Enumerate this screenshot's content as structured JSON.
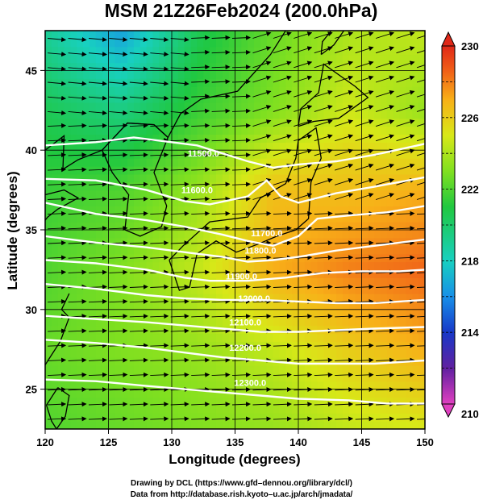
{
  "title": "MSM 21Z26Feb2024 (200.0hPa)",
  "xlabel": "Longitude (degrees)",
  "ylabel": "Latitude  (degrees)",
  "xticks": [
    {
      "value": 120,
      "label": "120"
    },
    {
      "value": 125,
      "label": "125"
    },
    {
      "value": 130,
      "label": "130"
    },
    {
      "value": 135,
      "label": "135"
    },
    {
      "value": 140,
      "label": "140"
    },
    {
      "value": 145,
      "label": "145"
    },
    {
      "value": 150,
      "label": "150"
    }
  ],
  "yticks": [
    {
      "value": 25,
      "label": "25"
    },
    {
      "value": 30,
      "label": "30"
    },
    {
      "value": 35,
      "label": "35"
    },
    {
      "value": 40,
      "label": "40"
    },
    {
      "value": 45,
      "label": "45"
    }
  ],
  "colorbar": {
    "min": 210,
    "max": 230,
    "labels": [
      {
        "value": 230,
        "label": "230"
      },
      {
        "value": 226,
        "label": "226"
      },
      {
        "value": 222,
        "label": "222"
      },
      {
        "value": 218,
        "label": "218"
      },
      {
        "value": 214,
        "label": "214"
      },
      {
        "value": 210,
        "label": "210"
      }
    ],
    "colors": [
      "#e040c0",
      "#6020a0",
      "#1838c8",
      "#1890e8",
      "#18d0c0",
      "#20c840",
      "#80e020",
      "#d8e818",
      "#f8b018",
      "#f06018",
      "#e02818"
    ]
  },
  "map_data": {
    "lon_range": [
      120,
      150
    ],
    "lat_range": [
      22.5,
      47.5
    ],
    "height_contours": [
      {
        "label": "11500.0",
        "points": [
          [
            120,
            40.3
          ],
          [
            124,
            40.5
          ],
          [
            127,
            40.8
          ],
          [
            132,
            40.3
          ],
          [
            134,
            39.8
          ],
          [
            136,
            39.3
          ],
          [
            138,
            38.9
          ],
          [
            140,
            39.1
          ],
          [
            143,
            39.3
          ],
          [
            146,
            39.7
          ],
          [
            150,
            40.4
          ]
        ]
      },
      {
        "label": "11600.0",
        "points": [
          [
            120,
            38.2
          ],
          [
            124,
            38.1
          ],
          [
            128,
            37.5
          ],
          [
            131,
            36.8
          ],
          [
            133,
            36.6
          ],
          [
            136,
            37.1
          ],
          [
            137.5,
            38.1
          ],
          [
            138.6,
            37.1
          ],
          [
            140,
            36.7
          ],
          [
            143,
            37.3
          ],
          [
            146,
            37.7
          ],
          [
            150,
            38.3
          ]
        ]
      },
      {
        "label": "11700.0",
        "points": [
          [
            120,
            36.7
          ],
          [
            124,
            36.0
          ],
          [
            128,
            35.6
          ],
          [
            131,
            35.2
          ],
          [
            134,
            34.7
          ],
          [
            136,
            34.3
          ],
          [
            138,
            34.0
          ],
          [
            140,
            34.6
          ],
          [
            141.5,
            35.7
          ],
          [
            144,
            35.9
          ],
          [
            147,
            36.1
          ],
          [
            150,
            36.5
          ]
        ]
      },
      {
        "label": "11800.0",
        "points": [
          [
            120,
            34.6
          ],
          [
            124,
            34.2
          ],
          [
            128,
            33.9
          ],
          [
            131,
            33.6
          ],
          [
            134,
            33.3
          ],
          [
            136,
            33.0
          ],
          [
            138,
            33.1
          ],
          [
            140,
            33.3
          ],
          [
            143,
            33.7
          ],
          [
            146,
            34.0
          ],
          [
            150,
            34.4
          ]
        ]
      },
      {
        "label": "11900.0",
        "points": [
          [
            120,
            33.1
          ],
          [
            124,
            32.9
          ],
          [
            128,
            32.5
          ],
          [
            131,
            32.0
          ],
          [
            133,
            31.8
          ],
          [
            136,
            31.8
          ],
          [
            139,
            32.0
          ],
          [
            142,
            32.3
          ],
          [
            145,
            32.4
          ],
          [
            148,
            32.4
          ],
          [
            150,
            32.5
          ]
        ]
      },
      {
        "label": "12000.0",
        "points": [
          [
            120,
            31.6
          ],
          [
            124,
            31.3
          ],
          [
            128,
            30.9
          ],
          [
            131,
            30.7
          ],
          [
            134,
            30.6
          ],
          [
            137,
            30.6
          ],
          [
            140,
            30.5
          ],
          [
            143,
            30.4
          ],
          [
            146,
            30.4
          ],
          [
            150,
            30.6
          ]
        ]
      },
      {
        "label": "12100.0",
        "points": [
          [
            120,
            29.6
          ],
          [
            124,
            29.4
          ],
          [
            128,
            29.2
          ],
          [
            131,
            29.0
          ],
          [
            134,
            28.8
          ],
          [
            137,
            28.6
          ],
          [
            140,
            28.6
          ],
          [
            143,
            28.7
          ],
          [
            146,
            28.8
          ],
          [
            150,
            28.9
          ]
        ]
      },
      {
        "label": "12200.0",
        "points": [
          [
            120,
            28.1
          ],
          [
            124,
            27.9
          ],
          [
            128,
            27.6
          ],
          [
            131,
            27.3
          ],
          [
            134,
            27.0
          ],
          [
            137,
            26.8
          ],
          [
            140,
            26.6
          ],
          [
            143,
            26.6
          ],
          [
            146,
            26.6
          ],
          [
            150,
            26.8
          ]
        ]
      },
      {
        "label": "12300.0",
        "points": [
          [
            120,
            25.6
          ],
          [
            124,
            25.5
          ],
          [
            128,
            25.2
          ],
          [
            131,
            25.0
          ],
          [
            134,
            24.8
          ],
          [
            137,
            24.6
          ],
          [
            140,
            24.4
          ],
          [
            144,
            24.3
          ],
          [
            147,
            24.1
          ],
          [
            150,
            24.1
          ]
        ]
      }
    ],
    "contour_label_positions": [
      [
        132.5,
        39.6
      ],
      [
        132.0,
        37.3
      ],
      [
        137.5,
        34.6
      ],
      [
        137.0,
        33.5
      ],
      [
        135.5,
        31.9
      ],
      [
        136.5,
        30.5
      ],
      [
        135.8,
        29.0
      ],
      [
        135.8,
        27.4
      ],
      [
        136.2,
        25.2
      ]
    ],
    "temperature_field": {
      "grid_lon": [
        120,
        126,
        132,
        138,
        144,
        150
      ],
      "grid_lat": [
        47.5,
        42.5,
        37.5,
        32.5,
        27.5,
        22.5
      ],
      "values": [
        [
          219.0,
          216.5,
          220.5,
          222.5,
          224.0,
          224.5
        ],
        [
          220.5,
          219.5,
          221.5,
          223.0,
          224.8,
          223.5
        ],
        [
          221.5,
          222.0,
          223.5,
          226.5,
          226.5,
          227.0
        ],
        [
          222.0,
          223.0,
          224.5,
          227.0,
          228.0,
          228.5
        ],
        [
          222.5,
          223.0,
          223.5,
          224.5,
          226.0,
          227.0
        ],
        [
          222.0,
          222.5,
          223.0,
          223.5,
          224.5,
          225.0
        ]
      ]
    },
    "coastlines": [
      {
        "name": "Honshu-Kyushu-Shikoku",
        "points": [
          [
            129.8,
            33.1
          ],
          [
            130.6,
            31.2
          ],
          [
            131.4,
            31.4
          ],
          [
            132.0,
            33.5
          ],
          [
            133.5,
            34.3
          ],
          [
            135.1,
            33.6
          ],
          [
            136.8,
            34.1
          ],
          [
            138.3,
            34.6
          ],
          [
            139.8,
            35.0
          ],
          [
            140.8,
            35.7
          ],
          [
            141.0,
            38.0
          ],
          [
            141.8,
            39.5
          ],
          [
            141.4,
            41.4
          ],
          [
            140.0,
            40.6
          ],
          [
            139.8,
            39.5
          ],
          [
            139.0,
            37.9
          ],
          [
            137.0,
            37.0
          ],
          [
            136.0,
            35.8
          ],
          [
            133.0,
            35.5
          ],
          [
            130.9,
            34.0
          ],
          [
            129.8,
            33.1
          ]
        ]
      },
      {
        "name": "Hokkaido",
        "points": [
          [
            140.0,
            41.5
          ],
          [
            141.2,
            41.8
          ],
          [
            143.2,
            42.0
          ],
          [
            145.5,
            43.3
          ],
          [
            144.5,
            44.0
          ],
          [
            142.0,
            45.4
          ],
          [
            141.6,
            43.6
          ],
          [
            140.2,
            42.6
          ],
          [
            140.0,
            41.5
          ]
        ]
      },
      {
        "name": "Sakhalin",
        "points": [
          [
            141.8,
            46.0
          ],
          [
            142.8,
            46.6
          ],
          [
            143.6,
            47.5
          ],
          [
            142.6,
            47.5
          ],
          [
            141.9,
            46.8
          ],
          [
            141.8,
            46.0
          ]
        ]
      },
      {
        "name": "Korea",
        "points": [
          [
            124.5,
            40.0
          ],
          [
            125.3,
            38.6
          ],
          [
            126.6,
            37.2
          ],
          [
            126.3,
            35.0
          ],
          [
            127.5,
            34.6
          ],
          [
            129.2,
            35.2
          ],
          [
            129.6,
            36.5
          ],
          [
            128.6,
            38.6
          ],
          [
            129.7,
            40.8
          ],
          [
            128.6,
            41.6
          ],
          [
            126.5,
            41.7
          ],
          [
            124.5,
            40.0
          ]
        ]
      },
      {
        "name": "China-Russia coast",
        "points": [
          [
            120.0,
            40.0
          ],
          [
            121.5,
            40.9
          ],
          [
            121.4,
            38.8
          ],
          [
            122.6,
            39.4
          ],
          [
            124.5,
            40.0
          ],
          [
            126.5,
            41.7
          ],
          [
            128.6,
            41.6
          ],
          [
            129.7,
            40.8
          ],
          [
            130.7,
            42.3
          ],
          [
            132.3,
            43.2
          ],
          [
            135.2,
            43.7
          ],
          [
            137.8,
            46.0
          ],
          [
            139.0,
            47.5
          ]
        ]
      },
      {
        "name": "Shandong-China coast",
        "points": [
          [
            120.0,
            37.2
          ],
          [
            121.5,
            37.5
          ],
          [
            122.6,
            37.0
          ],
          [
            121.0,
            36.3
          ],
          [
            120.2,
            35.8
          ],
          [
            120.0,
            35.6
          ]
        ]
      },
      {
        "name": "China SE coast",
        "points": [
          [
            121.9,
            31.0
          ],
          [
            121.3,
            30.0
          ],
          [
            121.9,
            29.5
          ],
          [
            121.2,
            28.0
          ],
          [
            120.3,
            26.9
          ],
          [
            119.6,
            26.0
          ]
        ]
      },
      {
        "name": "Taiwan",
        "points": [
          [
            121.0,
            25.1
          ],
          [
            121.9,
            24.6
          ],
          [
            121.6,
            23.3
          ],
          [
            120.9,
            22.5
          ],
          [
            120.5,
            23.0
          ],
          [
            120.1,
            24.0
          ],
          [
            121.0,
            25.1
          ]
        ]
      }
    ],
    "wind_vectors_note": "uniform westerly streams"
  }
}
